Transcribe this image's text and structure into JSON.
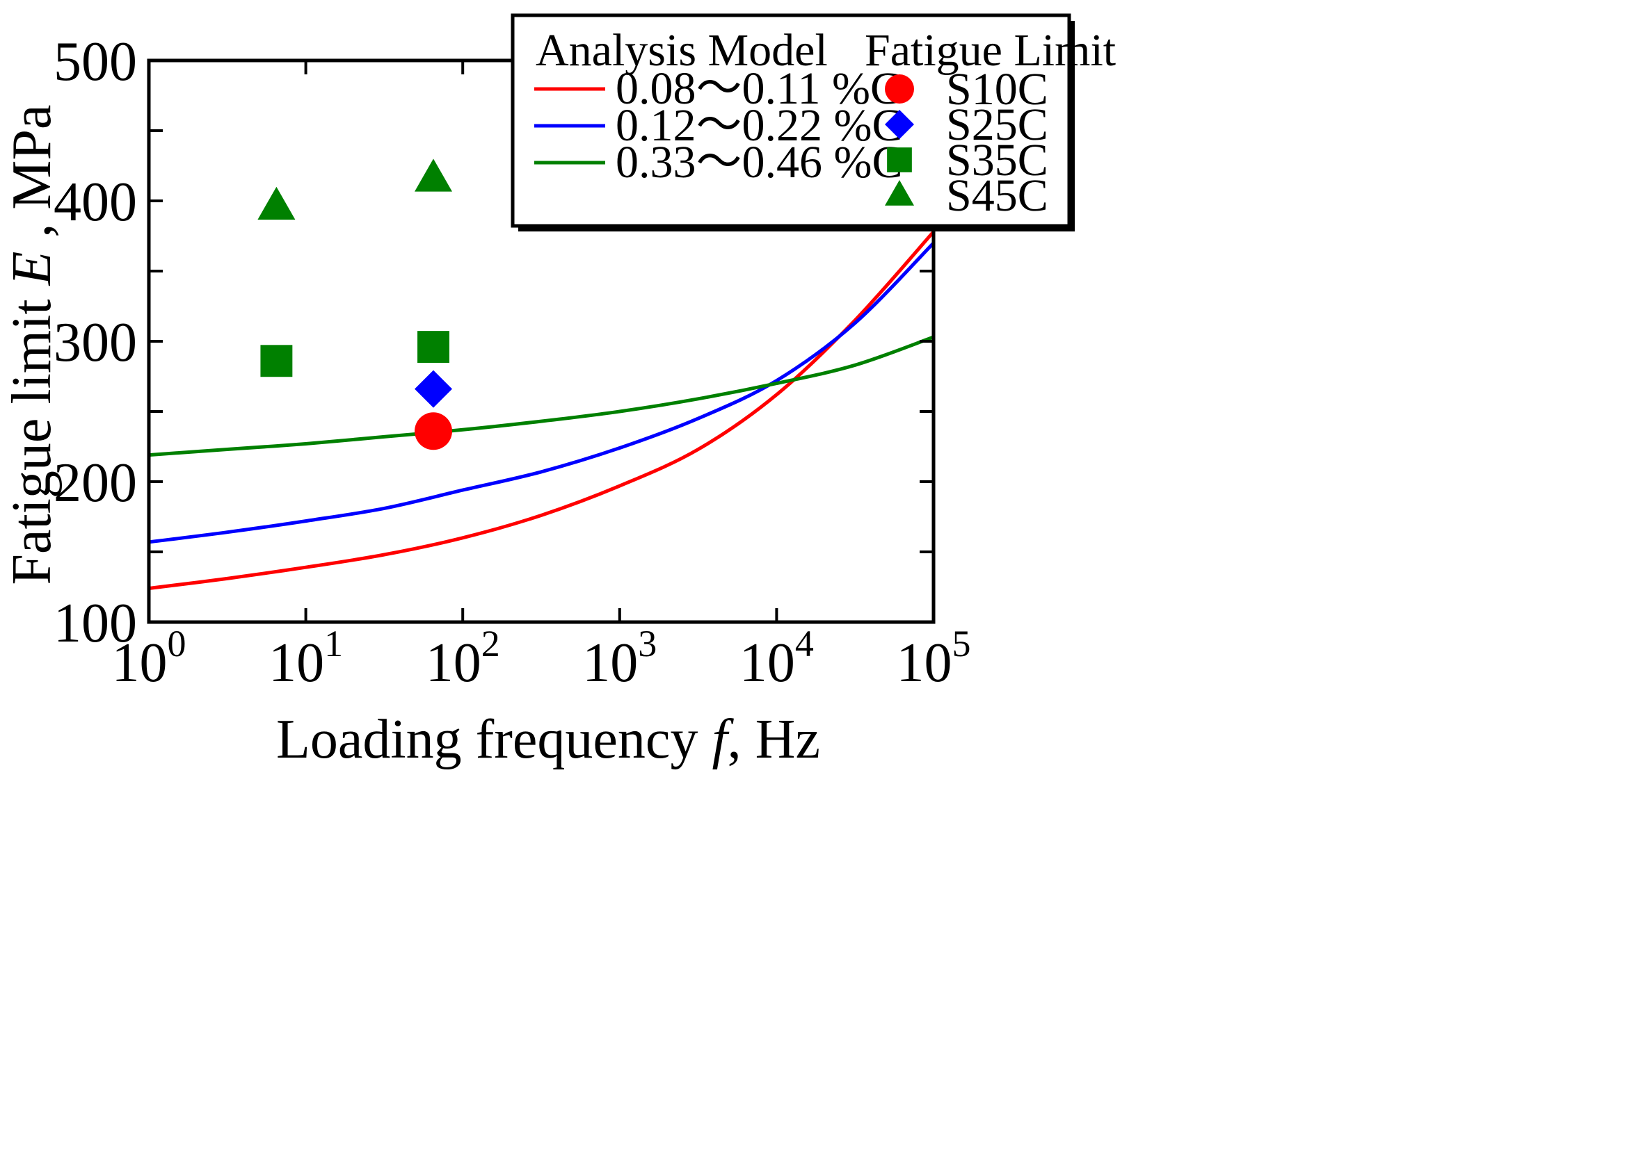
{
  "chart_data": {
    "type": "line",
    "xscale": "log",
    "xlim": [
      1,
      100000
    ],
    "ylim": [
      100,
      500
    ],
    "x_tick_values": [
      1,
      10,
      100,
      1000,
      10000,
      100000
    ],
    "x_tick_bases": [
      "10",
      "10",
      "10",
      "10",
      "10",
      "10"
    ],
    "x_tick_exponents": [
      "0",
      "1",
      "2",
      "3",
      "4",
      "5"
    ],
    "y_tick_values": [
      100,
      200,
      300,
      400,
      500
    ],
    "y_tick_labels": [
      "100",
      "200",
      "300",
      "400",
      "500"
    ],
    "grid": false,
    "xlabel": {
      "text": "Loading frequency",
      "var": "f",
      "unit": ", Hz"
    },
    "ylabel": {
      "text": "Fatigue limit",
      "var": "E",
      "unit": " , MPa"
    },
    "legend": {
      "placement": "top-right",
      "model_title": "Analysis Model",
      "points_title": "Fatigue Limit"
    },
    "series": [
      {
        "name": "0.08〜0.11 %C",
        "color": "#ff0000",
        "x": [
          1,
          3.16,
          10,
          31.6,
          100,
          316,
          1000,
          3162,
          10000,
          31623,
          100000
        ],
        "y": [
          124,
          131,
          139,
          148,
          160,
          176,
          197,
          223,
          262,
          315,
          378
        ]
      },
      {
        "name": "0.12〜0.22 %C",
        "color": "#0000ff",
        "x": [
          1,
          3.16,
          10,
          31.6,
          100,
          316,
          1000,
          3162,
          10000,
          31623,
          100000
        ],
        "y": [
          157,
          164,
          172,
          181,
          194,
          207,
          224,
          245,
          272,
          313,
          370
        ]
      },
      {
        "name": "0.33〜0.46 %C",
        "color": "#008000",
        "x": [
          1,
          3.16,
          10,
          31.6,
          100,
          316,
          1000,
          3162,
          10000,
          31623,
          100000
        ],
        "y": [
          219,
          223,
          227,
          232,
          237,
          243,
          250,
          259,
          270,
          283,
          303
        ]
      }
    ],
    "points": [
      {
        "name": "S10C",
        "shape": "circle",
        "color": "#ff0000",
        "data": [
          [
            65,
            236
          ]
        ]
      },
      {
        "name": "S25C",
        "shape": "diamond",
        "color": "#0000ff",
        "data": [
          [
            65,
            266
          ]
        ]
      },
      {
        "name": "S35C",
        "shape": "square",
        "color": "#008000",
        "data": [
          [
            6.5,
            286
          ],
          [
            65,
            296
          ]
        ]
      },
      {
        "name": "S45C",
        "shape": "triangle",
        "color": "#008000",
        "data": [
          [
            6.5,
            396
          ],
          [
            65,
            416
          ]
        ]
      }
    ]
  }
}
